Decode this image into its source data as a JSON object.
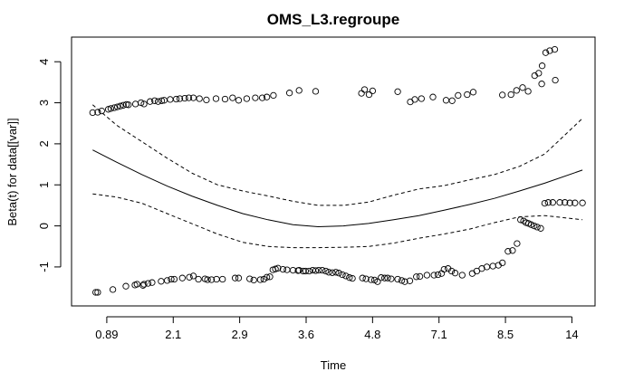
{
  "chart_data": {
    "type": "scatter",
    "title": "OMS_L3.regroupe",
    "xlabel": "Time",
    "ylabel": "Beta(t) for data[[var]]",
    "x_tick_labels": [
      "0.89",
      "2.1",
      "2.9",
      "3.6",
      "4.8",
      "7.1",
      "8.5",
      "14"
    ],
    "y_ticks": [
      -1,
      0,
      1,
      2,
      3,
      4
    ],
    "ylim": [
      -1.95,
      4.6
    ],
    "xlim": [
      0.3,
      10.7
    ],
    "grid": false,
    "series": [
      {
        "kind": "points",
        "x": [
          0.72,
          0.82,
          0.9,
          1.03,
          1.08,
          1.15,
          1.21,
          1.27,
          1.33,
          1.39,
          1.43,
          1.57,
          1.68,
          1.74,
          1.86,
          1.95,
          2.02,
          2.09,
          2.14,
          2.26,
          2.38,
          2.45,
          2.55,
          2.63,
          2.72,
          2.84,
          2.98,
          3.17,
          3.35,
          3.5,
          3.62,
          3.78,
          3.95,
          4.09,
          4.18,
          4.31,
          4.63,
          4.82,
          5.15,
          6.06,
          6.12,
          6.21,
          6.28,
          6.78,
          7.03,
          7.12,
          7.25,
          7.48,
          7.74,
          7.86,
          7.98,
          8.16,
          8.28,
          8.86,
          9.03,
          9.14,
          9.26,
          9.37,
          9.64,
          9.91
        ],
        "y": [
          2.76,
          2.77,
          2.8,
          2.84,
          2.86,
          2.88,
          2.9,
          2.92,
          2.94,
          2.96,
          2.95,
          2.97,
          3.0,
          2.97,
          3.03,
          3.05,
          3.03,
          3.05,
          3.06,
          3.08,
          3.09,
          3.1,
          3.11,
          3.12,
          3.12,
          3.1,
          3.07,
          3.1,
          3.09,
          3.12,
          3.06,
          3.1,
          3.12,
          3.12,
          3.14,
          3.18,
          3.24,
          3.3,
          3.28,
          3.23,
          3.32,
          3.2,
          3.29,
          3.27,
          3.02,
          3.08,
          3.1,
          3.14,
          3.06,
          3.05,
          3.18,
          3.2,
          3.26,
          3.19,
          3.2,
          3.3,
          3.37,
          3.28,
          3.46,
          3.55
        ]
      },
      {
        "kind": "points",
        "x": [
          0.78,
          0.82,
          1.12,
          1.38,
          1.56,
          1.6,
          1.72,
          1.74,
          1.82,
          1.9,
          2.08,
          2.2,
          2.28,
          2.34,
          2.5,
          2.64,
          2.72,
          2.82,
          2.95,
          3.0,
          3.08,
          3.18,
          3.3,
          3.55,
          3.62,
          3.84,
          3.92,
          4.05,
          4.12,
          4.18,
          4.24,
          4.3,
          4.35,
          4.4,
          4.5,
          4.58,
          4.7,
          4.8,
          4.82,
          4.9,
          4.95,
          5.02,
          5.09,
          5.15,
          5.21,
          5.28,
          5.35,
          5.41,
          5.48,
          5.55,
          5.61,
          5.68,
          5.75,
          5.82,
          5.88,
          6.08,
          6.15,
          6.25,
          6.32,
          6.38,
          6.45,
          6.52,
          6.58,
          6.65,
          6.78,
          6.86,
          6.92,
          7.02,
          7.15,
          7.22,
          7.36,
          7.5,
          7.58,
          7.65,
          7.7,
          7.78,
          7.85,
          7.92,
          8.06
        ],
        "y": [
          -1.62,
          -1.62,
          -1.55,
          -1.47,
          -1.44,
          -1.42,
          -1.45,
          -1.42,
          -1.4,
          -1.38,
          -1.35,
          -1.33,
          -1.3,
          -1.3,
          -1.27,
          -1.25,
          -1.22,
          -1.3,
          -1.29,
          -1.31,
          -1.31,
          -1.3,
          -1.3,
          -1.27,
          -1.27,
          -1.29,
          -1.32,
          -1.31,
          -1.3,
          -1.25,
          -1.24,
          -1.07,
          -1.05,
          -1.03,
          -1.06,
          -1.07,
          -1.08,
          -1.09,
          -1.08,
          -1.1,
          -1.1,
          -1.1,
          -1.08,
          -1.09,
          -1.08,
          -1.08,
          -1.1,
          -1.13,
          -1.14,
          -1.13,
          -1.15,
          -1.19,
          -1.22,
          -1.26,
          -1.28,
          -1.27,
          -1.29,
          -1.31,
          -1.32,
          -1.36,
          -1.26,
          -1.27,
          -1.27,
          -1.29,
          -1.3,
          -1.33,
          -1.36,
          -1.34,
          -1.24,
          -1.23,
          -1.2,
          -1.2,
          -1.19,
          -1.16,
          -1.06,
          -1.04,
          -1.1,
          -1.15,
          -1.2
        ]
      },
      {
        "kind": "points",
        "x": [
          8.26,
          8.35,
          8.45,
          8.55,
          8.67,
          8.78,
          8.86,
          8.97,
          9.06,
          9.15,
          9.22,
          9.28,
          9.33,
          9.38,
          9.43,
          9.49,
          9.55,
          9.62,
          9.7,
          9.77,
          9.86,
          10.0,
          10.1,
          10.2,
          10.3,
          10.45
        ],
        "y": [
          -1.16,
          -1.1,
          -1.04,
          -1.0,
          -0.98,
          -0.96,
          -0.9,
          -0.62,
          -0.6,
          -0.43,
          0.15,
          0.12,
          0.08,
          0.06,
          0.03,
          0.0,
          -0.03,
          -0.06,
          0.55,
          0.57,
          0.57,
          0.57,
          0.57,
          0.56,
          0.56,
          0.56
        ]
      },
      {
        "kind": "points",
        "x": [
          9.5,
          9.58,
          9.65,
          9.72,
          9.8,
          9.9
        ],
        "y": [
          3.66,
          3.72,
          3.9,
          4.22,
          4.27,
          4.3
        ]
      },
      {
        "kind": "line",
        "style": "solid",
        "x": [
          0.72,
          1.2,
          1.7,
          2.2,
          2.7,
          3.2,
          3.7,
          4.2,
          4.7,
          5.2,
          5.7,
          6.2,
          6.7,
          7.2,
          7.7,
          8.2,
          8.7,
          9.2,
          9.7,
          10.45
        ],
        "y": [
          1.85,
          1.55,
          1.25,
          0.97,
          0.72,
          0.5,
          0.3,
          0.15,
          0.03,
          -0.02,
          0.0,
          0.06,
          0.15,
          0.25,
          0.38,
          0.52,
          0.67,
          0.85,
          1.04,
          1.36
        ]
      },
      {
        "kind": "line",
        "style": "dashed",
        "x": [
          0.72,
          1.2,
          1.7,
          2.2,
          2.7,
          3.2,
          3.7,
          4.2,
          4.7,
          5.2,
          5.7,
          6.2,
          6.7,
          7.2,
          7.7,
          8.2,
          8.7,
          9.2,
          9.7,
          10.45
        ],
        "y": [
          2.95,
          2.45,
          2.05,
          1.65,
          1.28,
          1.0,
          0.85,
          0.73,
          0.6,
          0.5,
          0.5,
          0.58,
          0.75,
          0.9,
          0.98,
          1.12,
          1.25,
          1.45,
          1.75,
          2.62
        ]
      },
      {
        "kind": "line",
        "style": "dashed",
        "x": [
          0.72,
          1.2,
          1.7,
          2.2,
          2.7,
          3.2,
          3.7,
          4.2,
          4.7,
          5.2,
          5.7,
          6.2,
          6.7,
          7.2,
          7.7,
          8.2,
          8.7,
          9.2,
          9.7,
          10.45
        ],
        "y": [
          0.78,
          0.7,
          0.55,
          0.3,
          0.05,
          -0.2,
          -0.4,
          -0.5,
          -0.53,
          -0.53,
          -0.52,
          -0.5,
          -0.42,
          -0.3,
          -0.2,
          -0.08,
          0.08,
          0.22,
          0.25,
          0.15
        ]
      }
    ]
  }
}
